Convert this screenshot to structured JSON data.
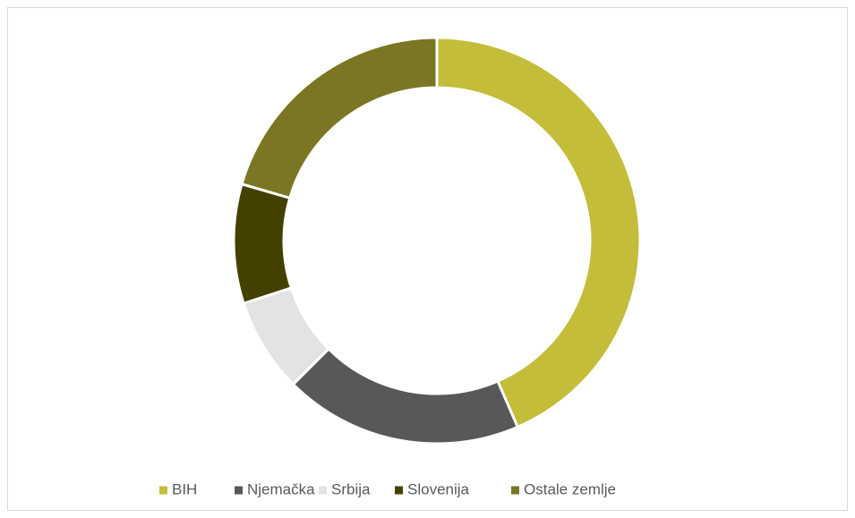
{
  "chart_data": {
    "type": "donut",
    "categories": [
      "BIH",
      "Njemačka",
      "Srbija",
      "Slovenija",
      "Ostale zemlje"
    ],
    "values": [
      43.5,
      19,
      7.5,
      9.5,
      20.5
    ],
    "colors": [
      "#c3bd3a",
      "#58585a",
      "#e3e3e3",
      "#444000",
      "#7a7624"
    ],
    "legend": "bottom"
  }
}
